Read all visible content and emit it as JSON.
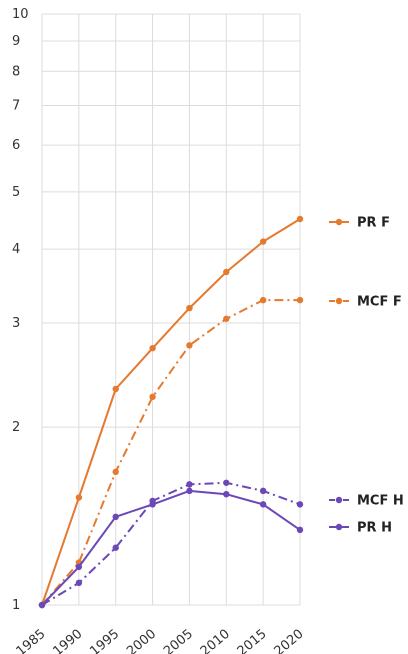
{
  "chart_data": {
    "type": "line",
    "title": "",
    "xlabel": "",
    "ylabel": "",
    "y_scale": "log",
    "ylim": [
      1,
      10
    ],
    "xlim": [
      1985,
      2020
    ],
    "grid": true,
    "legend_position": "right",
    "x": [
      1985,
      1990,
      1995,
      2000,
      2005,
      2010,
      2015,
      2020
    ],
    "x_tick_labels": [
      "1985",
      "1990",
      "1995",
      "2000",
      "2005",
      "2010",
      "2015",
      "2020"
    ],
    "y_tick_values": [
      1,
      2,
      3,
      4,
      5,
      6,
      7,
      8,
      9,
      10
    ],
    "y_tick_labels": [
      "1",
      "2",
      "3",
      "4",
      "5",
      "6",
      "7",
      "8",
      "9",
      "10"
    ],
    "series": [
      {
        "name": "PR F",
        "color": "#e57a2f",
        "dash": "solid",
        "values": [
          1.0,
          1.52,
          2.32,
          2.72,
          3.18,
          3.66,
          4.12,
          4.5
        ]
      },
      {
        "name": "MCF F",
        "color": "#e57a2f",
        "dash": "dashdot",
        "values": [
          1.0,
          1.18,
          1.68,
          2.25,
          2.75,
          3.05,
          3.28,
          3.28
        ]
      },
      {
        "name": "MCF H",
        "color": "#6b48b8",
        "dash": "dashdot",
        "values": [
          1.0,
          1.09,
          1.25,
          1.5,
          1.6,
          1.61,
          1.56,
          1.48
        ]
      },
      {
        "name": "PR H",
        "color": "#6b48b8",
        "dash": "solid",
        "values": [
          1.0,
          1.16,
          1.41,
          1.48,
          1.56,
          1.54,
          1.48,
          1.34
        ]
      }
    ]
  }
}
